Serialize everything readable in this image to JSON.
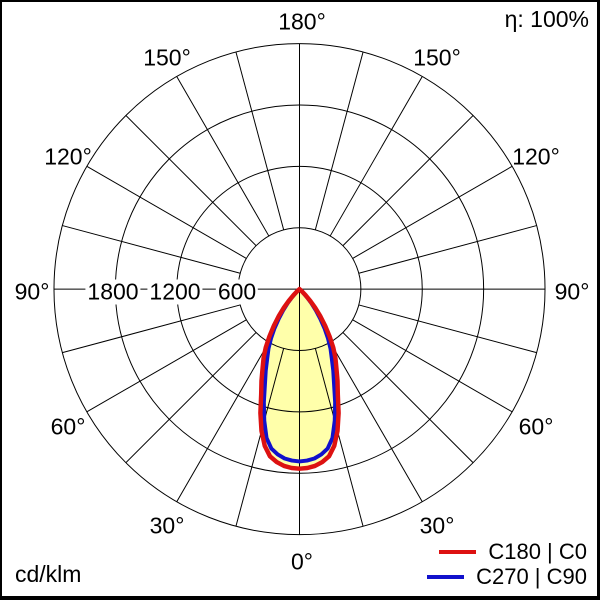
{
  "frame": {
    "eta_label": "η: 100%",
    "units_label": "cd/klm"
  },
  "legend": [
    {
      "label": "C180 | C0",
      "color": "#dd1111"
    },
    {
      "label": "C270 | C90",
      "color": "#1111cc"
    }
  ],
  "chart_data": {
    "type": "polar",
    "subtype": "luminous-intensity-distribution",
    "units": "cd/klm",
    "efficiency_text": "η: 100%",
    "radial_max": 2400,
    "grid": {
      "ring_values": [
        600,
        1200,
        1800,
        2400
      ],
      "spoke_step_deg": 15,
      "axes_deg": [
        0,
        90,
        180,
        270
      ]
    },
    "radial_labels": [
      {
        "text": "1800",
        "value": 1800
      },
      {
        "text": "1200",
        "value": 1200
      },
      {
        "text": "600",
        "value": 600
      }
    ],
    "angle_labels": [
      {
        "text": "180°",
        "angle": 180,
        "side": "center"
      },
      {
        "text": "150°",
        "angle": 150,
        "side": "left"
      },
      {
        "text": "150°",
        "angle": 150,
        "side": "right"
      },
      {
        "text": "120°",
        "angle": 120,
        "side": "left"
      },
      {
        "text": "120°",
        "angle": 120,
        "side": "right"
      },
      {
        "text": "90°",
        "angle": 90,
        "side": "left"
      },
      {
        "text": "90°",
        "angle": 90,
        "side": "right"
      },
      {
        "text": "60°",
        "angle": 60,
        "side": "left"
      },
      {
        "text": "60°",
        "angle": 60,
        "side": "right"
      },
      {
        "text": "30°",
        "angle": 30,
        "side": "left"
      },
      {
        "text": "30°",
        "angle": 30,
        "side": "right"
      },
      {
        "text": "0°",
        "angle": 0,
        "side": "center"
      }
    ],
    "fill_color": "#ffffaa",
    "theta_deg": [
      0,
      2.5,
      5,
      7.5,
      10,
      12.5,
      15,
      17.5,
      20,
      22.5,
      25,
      27.5,
      30,
      32.5,
      35,
      37.5,
      40,
      42.5,
      45,
      47.5,
      50
    ],
    "series": [
      {
        "name": "C180 | C0",
        "color": "#dd1111",
        "stroke_px": 4.5,
        "filled": true,
        "symmetric": true,
        "intensity_cd_per_klm": [
          1755,
          1750,
          1735,
          1705,
          1660,
          1570,
          1435,
          1270,
          1095,
          970,
          855,
          760,
          660,
          548,
          437,
          335,
          238,
          155,
          82,
          34,
          0
        ]
      },
      {
        "name": "C270 | C90",
        "color": "#1111cc",
        "stroke_px": 4,
        "filled": false,
        "symmetric": true,
        "intensity_cd_per_klm": [
          1685,
          1678,
          1662,
          1630,
          1583,
          1490,
          1330,
          1160,
          988,
          863,
          747,
          655,
          558,
          456,
          354,
          262,
          180,
          107,
          49,
          17,
          0
        ]
      }
    ]
  }
}
